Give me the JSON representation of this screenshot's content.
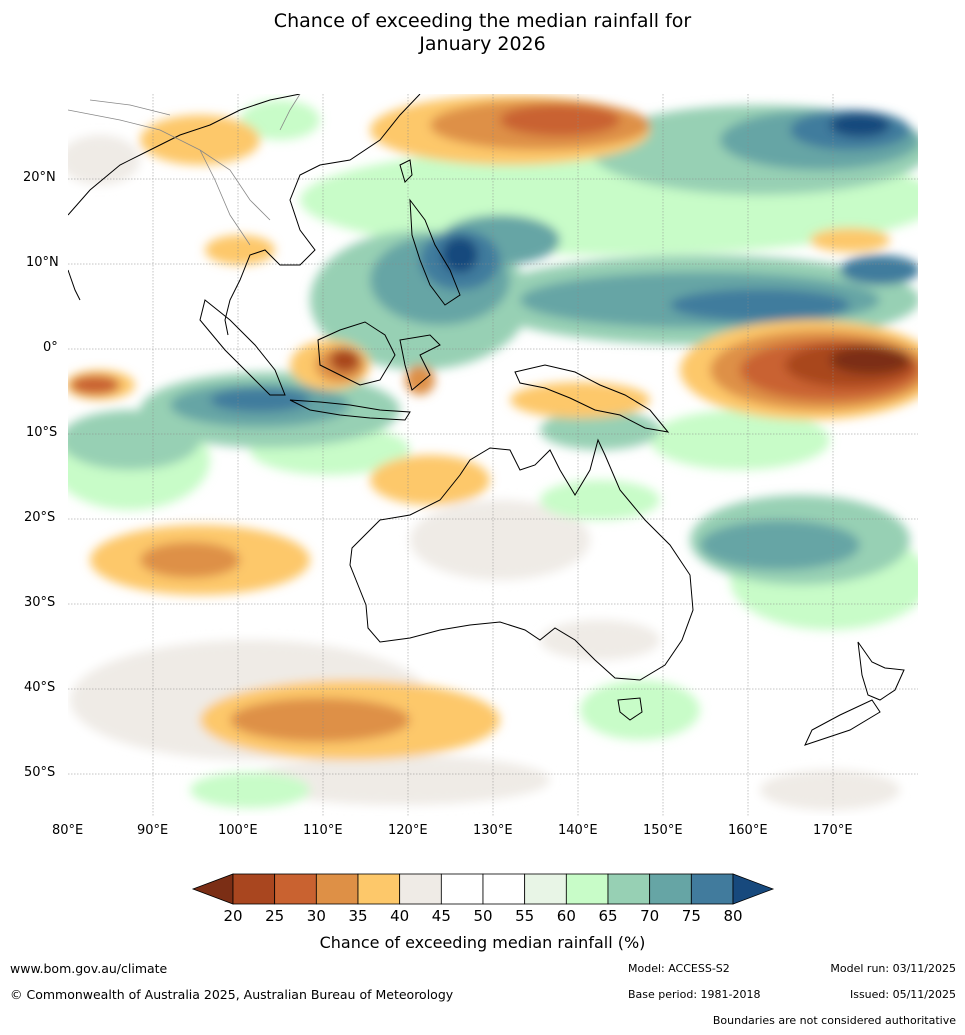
{
  "title": {
    "line1": "Chance of exceeding the median rainfall for",
    "line2": "January 2026"
  },
  "map": {
    "lon_range": [
      80,
      180
    ],
    "lat_range": [
      -55,
      30
    ],
    "lat_ticks": [
      "20°N",
      "10°N",
      "0°",
      "10°S",
      "20°S",
      "30°S",
      "40°S",
      "50°S"
    ],
    "lon_ticks": [
      "80°E",
      "90°E",
      "100°E",
      "110°E",
      "120°E",
      "130°E",
      "140°E",
      "150°E",
      "160°E",
      "170°E"
    ],
    "grid": true
  },
  "colorbar": {
    "ticks": [
      "20",
      "25",
      "30",
      "35",
      "40",
      "45",
      "50",
      "55",
      "60",
      "65",
      "70",
      "75",
      "80"
    ],
    "colors": [
      "#7b2e15",
      "#a9461f",
      "#c96230",
      "#de9046",
      "#fdc86a",
      "#efebe6",
      "#ffffff",
      "#ffffff",
      "#e8f5e6",
      "#c8fcc8",
      "#97d0b4",
      "#66a5a5",
      "#417b9d",
      "#17497d"
    ],
    "label": "Chance of exceeding median rainfall (%)"
  },
  "footer": {
    "website": "www.bom.gov.au/climate",
    "copyright": "© Commonwealth of Australia 2025, Australian Bureau of Meteorology",
    "model": "Model: ACCESS-S2",
    "base_period": "Base period: 1981-2018",
    "model_run": "Model run: 03/11/2025",
    "issued": "Issued: 05/11/2025",
    "disclaimer": "Boundaries are not considered authoritative"
  }
}
